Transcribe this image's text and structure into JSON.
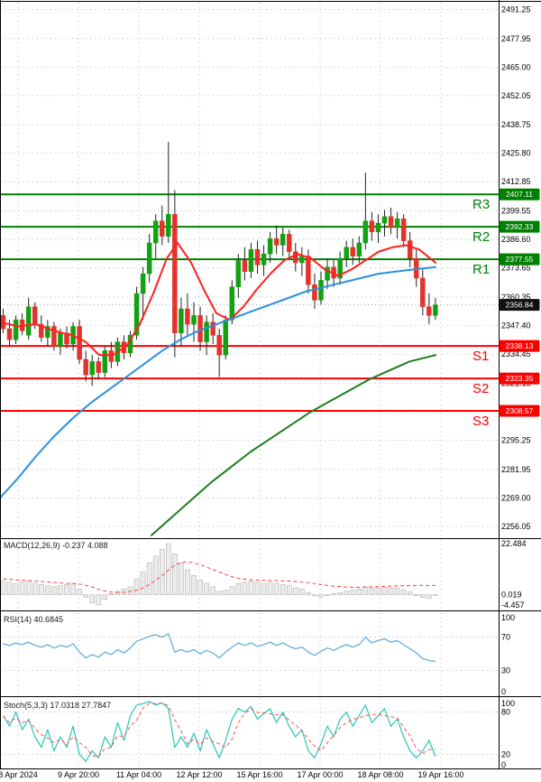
{
  "colors": {
    "up_candle": "#12a112",
    "down_candle": "#e3332c",
    "wick": "#222222",
    "resistance": "#008000",
    "support": "#fe0000",
    "ma_red": "#ff2020",
    "ma_blue": "#2a90e0",
    "ma_green": "#1e7d1e",
    "rsi_line": "#64aee0",
    "stoch_k": "#26c6b9",
    "stoch_d": "#ff5050",
    "macd_bar_fill": "#ececec",
    "macd_bar_stroke": "#b0b0b0",
    "macd_signal": "#ff4040",
    "grid": "#c8c8c8",
    "border": "#000000",
    "text": "#000000",
    "current_badge": "#111111",
    "badge_text": "#ffffff"
  },
  "x_axis": {
    "labels": [
      "8 Apr 2024",
      "9 Apr 20:00",
      "11 Apr 04:00",
      "12 Apr 12:00",
      "15 Apr 16:00",
      "17 Apr 00:00",
      "18 Apr 08:00",
      "19 Apr 16:00"
    ],
    "positions": [
      20,
      87,
      154,
      221,
      288,
      355,
      422,
      489
    ]
  },
  "chart_data": [
    {
      "type": "candlestick",
      "panel": "main",
      "ylim": [
        2251.9,
        2494.7
      ],
      "yticks": [
        "2491.25",
        "2477.95",
        "2465.00",
        "2452.05",
        "2438.75",
        "2425.80",
        "2412.85",
        "2399.55",
        "2386.60",
        "2373.65",
        "2360.35",
        "2347.40",
        "2334.45",
        "2321.15",
        "2308.20",
        "2295.25",
        "2281.95",
        "2269.00",
        "2256.05"
      ],
      "levels": [
        {
          "name": "R3",
          "price": 2407.11,
          "text": "2407.11",
          "kind": "resistance"
        },
        {
          "name": "R2",
          "price": 2392.33,
          "text": "2392.33",
          "kind": "resistance"
        },
        {
          "name": "R1",
          "price": 2377.55,
          "text": "2377.55",
          "kind": "resistance"
        },
        {
          "name": "S1",
          "price": 2338.13,
          "text": "2338.13",
          "kind": "support"
        },
        {
          "name": "S2",
          "price": 2323.35,
          "text": "2323.35",
          "kind": "support"
        },
        {
          "name": "S3",
          "price": 2308.57,
          "text": "2308.57",
          "kind": "support"
        }
      ],
      "current_price": {
        "text": "2356.84",
        "value": 2356.84
      },
      "candles": [
        [
          2352,
          2355,
          2344,
          2346
        ],
        [
          2346,
          2350,
          2338,
          2341
        ],
        [
          2341,
          2352,
          2339,
          2350
        ],
        [
          2350,
          2353,
          2343,
          2345
        ],
        [
          2343,
          2360,
          2341,
          2356
        ],
        [
          2356,
          2358,
          2346,
          2348
        ],
        [
          2348,
          2352,
          2340,
          2342
        ],
        [
          2342,
          2350,
          2338,
          2347
        ],
        [
          2347,
          2349,
          2336,
          2338
        ],
        [
          2338,
          2346,
          2334,
          2344
        ],
        [
          2344,
          2347,
          2337,
          2339
        ],
        [
          2339,
          2349,
          2336,
          2347
        ],
        [
          2347,
          2350,
          2330,
          2332
        ],
        [
          2332,
          2336,
          2322,
          2325
        ],
        [
          2325,
          2334,
          2320,
          2331
        ],
        [
          2331,
          2333,
          2323,
          2326
        ],
        [
          2326,
          2338,
          2324,
          2336
        ],
        [
          2336,
          2340,
          2328,
          2331
        ],
        [
          2331,
          2342,
          2329,
          2340
        ],
        [
          2340,
          2343,
          2332,
          2335
        ],
        [
          2335,
          2345,
          2333,
          2343
        ],
        [
          2343,
          2365,
          2341,
          2362
        ],
        [
          2362,
          2374,
          2350,
          2371
        ],
        [
          2371,
          2389,
          2367,
          2385
        ],
        [
          2385,
          2398,
          2378,
          2395
        ],
        [
          2395,
          2402,
          2384,
          2388
        ],
        [
          2388,
          2431,
          2385,
          2398
        ],
        [
          2398,
          2409,
          2333,
          2344
        ],
        [
          2344,
          2360,
          2338,
          2355
        ],
        [
          2355,
          2362,
          2343,
          2348
        ],
        [
          2348,
          2358,
          2340,
          2352
        ],
        [
          2352,
          2356,
          2336,
          2340
        ],
        [
          2340,
          2352,
          2334,
          2349
        ],
        [
          2349,
          2353,
          2339,
          2343
        ],
        [
          2343,
          2346,
          2324,
          2334
        ],
        [
          2334,
          2352,
          2332,
          2350
        ],
        [
          2350,
          2368,
          2348,
          2365
        ],
        [
          2365,
          2380,
          2360,
          2377
        ],
        [
          2377,
          2383,
          2368,
          2372
        ],
        [
          2372,
          2385,
          2369,
          2382
        ],
        [
          2382,
          2386,
          2371,
          2375
        ],
        [
          2375,
          2384,
          2370,
          2380
        ],
        [
          2380,
          2390,
          2376,
          2387
        ],
        [
          2387,
          2393,
          2380,
          2384
        ],
        [
          2384,
          2392,
          2379,
          2389
        ],
        [
          2389,
          2391,
          2378,
          2381
        ],
        [
          2381,
          2385,
          2372,
          2376
        ],
        [
          2376,
          2383,
          2370,
          2379
        ],
        [
          2379,
          2382,
          2362,
          2366
        ],
        [
          2366,
          2371,
          2355,
          2359
        ],
        [
          2359,
          2372,
          2357,
          2368
        ],
        [
          2368,
          2378,
          2364,
          2374
        ],
        [
          2374,
          2377,
          2365,
          2369
        ],
        [
          2369,
          2381,
          2366,
          2378
        ],
        [
          2378,
          2386,
          2374,
          2383
        ],
        [
          2383,
          2387,
          2375,
          2379
        ],
        [
          2379,
          2388,
          2376,
          2385
        ],
        [
          2385,
          2417,
          2382,
          2395
        ],
        [
          2395,
          2399,
          2386,
          2390
        ],
        [
          2390,
          2398,
          2385,
          2394
        ],
        [
          2394,
          2400,
          2388,
          2397
        ],
        [
          2397,
          2401,
          2389,
          2392
        ],
        [
          2392,
          2399,
          2387,
          2396
        ],
        [
          2396,
          2398,
          2383,
          2386
        ],
        [
          2386,
          2390,
          2374,
          2378
        ],
        [
          2378,
          2382,
          2365,
          2369
        ],
        [
          2369,
          2373,
          2352,
          2356
        ],
        [
          2356,
          2362,
          2348,
          2352
        ],
        [
          2352,
          2360,
          2350,
          2356.84
        ]
      ],
      "overlays": [
        {
          "name": "ma-fast-red",
          "color_key": "ma_red",
          "points": [
            [
              0,
              2349
            ],
            [
              20,
              2347
            ],
            [
              40,
              2348
            ],
            [
              60,
              2345
            ],
            [
              80,
              2343
            ],
            [
              95,
              2340
            ],
            [
              110,
              2334
            ],
            [
              125,
              2334
            ],
            [
              140,
              2338
            ],
            [
              155,
              2348
            ],
            [
              170,
              2362
            ],
            [
              185,
              2378
            ],
            [
              197,
              2385
            ],
            [
              212,
              2376
            ],
            [
              227,
              2363
            ],
            [
              240,
              2353
            ],
            [
              255,
              2350
            ],
            [
              270,
              2356
            ],
            [
              285,
              2364
            ],
            [
              300,
              2371
            ],
            [
              315,
              2377
            ],
            [
              330,
              2380
            ],
            [
              345,
              2378
            ],
            [
              360,
              2373
            ],
            [
              375,
              2370
            ],
            [
              390,
              2373
            ],
            [
              405,
              2377
            ],
            [
              420,
              2381
            ],
            [
              435,
              2383
            ],
            [
              450,
              2384
            ],
            [
              465,
              2382
            ],
            [
              483,
              2376
            ]
          ]
        },
        {
          "name": "ma-mid-blue",
          "color_key": "ma_blue",
          "points": [
            [
              0,
              2269
            ],
            [
              20,
              2278
            ],
            [
              40,
              2288
            ],
            [
              60,
              2297
            ],
            [
              80,
              2305
            ],
            [
              100,
              2312
            ],
            [
              120,
              2318
            ],
            [
              140,
              2324
            ],
            [
              160,
              2330
            ],
            [
              180,
              2336
            ],
            [
              200,
              2341
            ],
            [
              220,
              2345
            ],
            [
              240,
              2348
            ],
            [
              260,
              2351
            ],
            [
              280,
              2354
            ],
            [
              300,
              2357
            ],
            [
              320,
              2360
            ],
            [
              340,
              2363
            ],
            [
              360,
              2365
            ],
            [
              380,
              2367
            ],
            [
              400,
              2369
            ],
            [
              420,
              2371
            ],
            [
              440,
              2372
            ],
            [
              460,
              2373
            ],
            [
              483,
              2374
            ]
          ]
        },
        {
          "name": "ma-slow-green",
          "color_key": "ma_green",
          "points": [
            [
              168,
              2252
            ],
            [
              190,
              2260
            ],
            [
              212,
              2268
            ],
            [
              234,
              2276
            ],
            [
              256,
              2283
            ],
            [
              278,
              2290
            ],
            [
              300,
              2296
            ],
            [
              322,
              2302
            ],
            [
              344,
              2308
            ],
            [
              366,
              2313
            ],
            [
              388,
              2318
            ],
            [
              410,
              2323
            ],
            [
              432,
              2327
            ],
            [
              454,
              2331
            ],
            [
              483,
              2334
            ]
          ]
        }
      ]
    },
    {
      "type": "bar",
      "panel": "macd",
      "label": "MACD(12,26,9) -0.237 4.088",
      "ylim": [
        -6.5,
        24.5
      ],
      "axis_labels": [
        {
          "text": "22.484",
          "value": 22.484
        },
        {
          "text": "0.019",
          "value": 0.019
        },
        {
          "text": "-4.457",
          "value": -4.457
        }
      ],
      "histogram": [
        6,
        5.5,
        5,
        5.5,
        6,
        5,
        4.5,
        4,
        3.5,
        4,
        4.5,
        5,
        2.5,
        -1,
        -3.5,
        -4.457,
        -2,
        0.5,
        1.5,
        2.5,
        3.5,
        7,
        10,
        14,
        17,
        20,
        22.484,
        18,
        14,
        11,
        8.5,
        6.5,
        5,
        3.5,
        1.5,
        2,
        3.5,
        5,
        5.5,
        6,
        5.5,
        5,
        5.5,
        5,
        4.5,
        4,
        3,
        2.5,
        1,
        -0.5,
        -1,
        0,
        0.5,
        1,
        1.5,
        2,
        2.5,
        3.5,
        3,
        3,
        3.2,
        3,
        2.8,
        2.2,
        1.2,
        0,
        -1.2,
        -1.5,
        -0.237
      ],
      "signal": [
        7,
        6.8,
        6.6,
        6.4,
        6.2,
        6,
        5.8,
        5.6,
        5.4,
        5.2,
        5,
        4.9,
        4.7,
        4.2,
        3.4,
        2.4,
        1.6,
        1.2,
        1,
        1.1,
        1.4,
        2,
        3,
        4.5,
        6.3,
        8.4,
        10.8,
        13,
        14.2,
        14.5,
        14,
        13.2,
        12.2,
        11.1,
        10,
        8.9,
        7.9,
        7.2,
        6.8,
        6.6,
        6.5,
        6.4,
        6.3,
        6.2,
        6.1,
        6,
        5.8,
        5.6,
        5.3,
        4.9,
        4.5,
        4.1,
        3.8,
        3.6,
        3.4,
        3.3,
        3.3,
        3.4,
        3.5,
        3.6,
        3.7,
        3.8,
        3.9,
        4,
        4.1,
        4.1,
        4.1,
        4.1,
        4.088
      ]
    },
    {
      "type": "line",
      "panel": "rsi",
      "label": "RSI(14) 40.6845",
      "ylim": [
        0,
        100
      ],
      "grid_levels": [
        70,
        30
      ],
      "axis_labels": [
        {
          "text": "100",
          "value": 100
        },
        {
          "text": "70",
          "value": 70
        },
        {
          "text": "30",
          "value": 30
        },
        {
          "text": "0",
          "value": 0
        }
      ],
      "values": [
        62,
        60,
        63,
        61,
        64,
        60,
        58,
        61,
        57,
        60,
        58,
        62,
        52,
        45,
        49,
        46,
        52,
        49,
        55,
        51,
        57,
        65,
        68,
        71,
        73,
        70,
        74,
        52,
        55,
        52,
        55,
        50,
        54,
        51,
        45,
        52,
        58,
        63,
        60,
        63,
        59,
        61,
        64,
        60,
        63,
        59,
        56,
        58,
        52,
        48,
        53,
        57,
        54,
        58,
        61,
        58,
        61,
        70,
        63,
        66,
        68,
        64,
        66,
        61,
        56,
        51,
        44,
        42,
        40.68
      ]
    },
    {
      "type": "line",
      "panel": "stoch",
      "label": "Stoch(5,3,3) 17.0318 27.7847",
      "ylim": [
        0,
        100
      ],
      "grid_levels": [
        80,
        20
      ],
      "axis_labels": [
        {
          "text": "100",
          "value": 100
        },
        {
          "text": "80",
          "value": 80
        },
        {
          "text": "20",
          "value": 20
        },
        {
          "text": "0",
          "value": 0
        }
      ],
      "k": [
        75,
        60,
        80,
        55,
        70,
        45,
        30,
        55,
        25,
        45,
        30,
        60,
        20,
        10,
        25,
        15,
        45,
        30,
        65,
        40,
        75,
        90,
        92,
        95,
        90,
        93,
        85,
        30,
        45,
        30,
        50,
        25,
        55,
        35,
        15,
        40,
        70,
        85,
        80,
        88,
        70,
        78,
        85,
        65,
        80,
        60,
        45,
        55,
        25,
        15,
        35,
        60,
        45,
        70,
        80,
        60,
        75,
        90,
        65,
        75,
        85,
        60,
        70,
        45,
        25,
        15,
        25,
        40,
        17
      ]
    }
  ]
}
